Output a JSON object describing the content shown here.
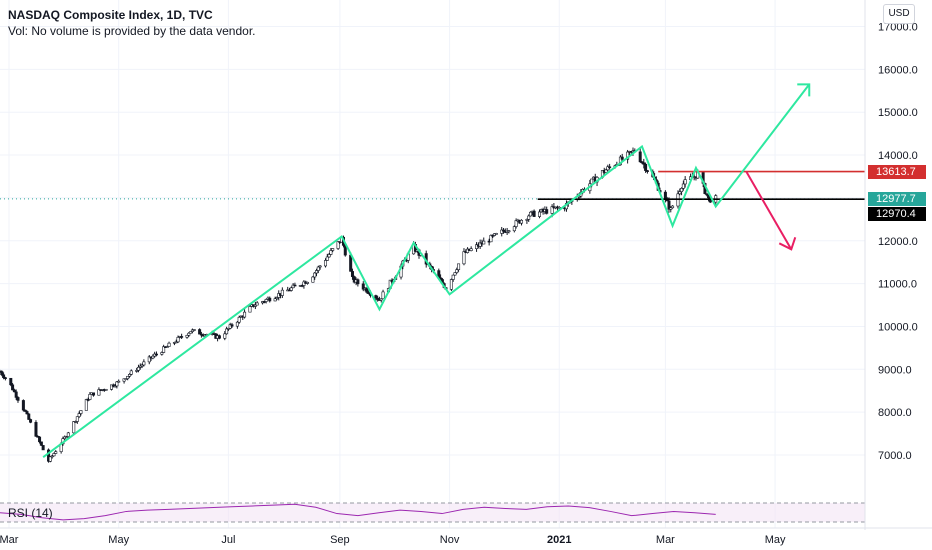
{
  "header": {
    "title": "NASDAQ Composite Index, 1D, TVC",
    "subtitle": "Vol: No volume is provided by the data vendor.",
    "currency_button": "USD"
  },
  "rsi": {
    "label": "RSI (14)",
    "color": "#9c27b0"
  },
  "price_labels": [
    {
      "value": "13613.7",
      "color": "#d32f2f"
    },
    {
      "value": "12977.7",
      "color": "#26a69a"
    },
    {
      "value": "12970.4",
      "color": "#000000"
    }
  ],
  "colors": {
    "candle_up": "#131722",
    "candle_down": "#131722",
    "pattern_line": "#2ee8a0",
    "resistance": "#d32f2f",
    "support": "#000000",
    "arrow_down": "#e91e63"
  },
  "chart_data": {
    "type": "candlestick",
    "title": "NASDAQ Composite Index, 1D, TVC",
    "y_axis": {
      "ticks": [
        7000,
        8000,
        9000,
        10000,
        11000,
        12000,
        13000,
        14000,
        15000,
        16000,
        17000
      ],
      "tick_labels": [
        "7000.0",
        "8000.0",
        "9000.0",
        "10000.0",
        "11000.0",
        "12000.0",
        "13000.0",
        "14000.0",
        "15000.0",
        "16000.0",
        "17000.0"
      ],
      "range": [
        6000,
        17500
      ],
      "side": "right"
    },
    "x_axis": {
      "tick_labels": [
        "Mar",
        "May",
        "Jul",
        "Sep",
        "Nov",
        "2021",
        "Mar",
        "May"
      ],
      "tick_dates": [
        "2020-03-01",
        "2020-05-01",
        "2020-07-01",
        "2020-09-01",
        "2020-11-01",
        "2021-01-01",
        "2021-03-01",
        "2021-05-01"
      ],
      "range": [
        "2020-02-25",
        "2021-06-20"
      ]
    },
    "series_anchors": [
      [
        "2020-02-25",
        8950
      ],
      [
        "2020-03-01",
        8700
      ],
      [
        "2020-03-10",
        8000
      ],
      [
        "2020-03-23",
        6860
      ],
      [
        "2020-04-01",
        7400
      ],
      [
        "2020-04-15",
        8400
      ],
      [
        "2020-05-01",
        8700
      ],
      [
        "2020-05-20",
        9300
      ],
      [
        "2020-06-10",
        9900
      ],
      [
        "2020-06-26",
        9750
      ],
      [
        "2020-07-15",
        10500
      ],
      [
        "2020-08-01",
        10800
      ],
      [
        "2020-08-15",
        11100
      ],
      [
        "2020-09-02",
        12050
      ],
      [
        "2020-09-08",
        11100
      ],
      [
        "2020-09-23",
        10630
      ],
      [
        "2020-10-12",
        11850
      ],
      [
        "2020-10-30",
        10900
      ],
      [
        "2020-11-09",
        11700
      ],
      [
        "2020-11-30",
        12200
      ],
      [
        "2020-12-15",
        12600
      ],
      [
        "2021-01-04",
        12800
      ],
      [
        "2021-01-25",
        13600
      ],
      [
        "2021-02-12",
        14100
      ],
      [
        "2021-02-23",
        13400
      ],
      [
        "2021-03-04",
        12720
      ],
      [
        "2021-03-10",
        13300
      ],
      [
        "2021-03-19",
        13560
      ],
      [
        "2021-03-25",
        12970
      ],
      [
        "2021-03-29",
        12977.7
      ]
    ],
    "pattern_line": [
      [
        "2020-03-20",
        6950
      ],
      [
        "2020-09-02",
        12100
      ],
      [
        "2020-09-23",
        10400
      ],
      [
        "2020-10-12",
        11950
      ],
      [
        "2020-11-01",
        10750
      ],
      [
        "2021-02-16",
        14200
      ],
      [
        "2021-03-05",
        12350
      ],
      [
        "2021-03-18",
        13700
      ],
      [
        "2021-03-29",
        12800
      ],
      [
        "2021-05-20",
        15650
      ]
    ],
    "levels": [
      {
        "name": "13613.7",
        "value": 13613.7,
        "from": "2021-02-25",
        "to": "2021-06-20"
      },
      {
        "name": "12970.4",
        "value": 12970.4,
        "from": "2020-12-20",
        "to": "2021-06-20"
      }
    ],
    "projection_down": [
      [
        "2021-04-15",
        13613.7
      ],
      [
        "2021-05-10",
        11800
      ]
    ],
    "rsi_series": [
      52,
      48,
      40,
      35,
      38,
      45,
      55,
      58,
      60,
      62,
      64,
      66,
      68,
      70,
      72,
      65,
      50,
      45,
      52,
      58,
      55,
      50,
      60,
      65,
      62,
      60,
      66,
      68,
      64,
      55,
      45,
      50,
      55,
      52,
      48
    ],
    "grid": true,
    "legend": "none"
  }
}
